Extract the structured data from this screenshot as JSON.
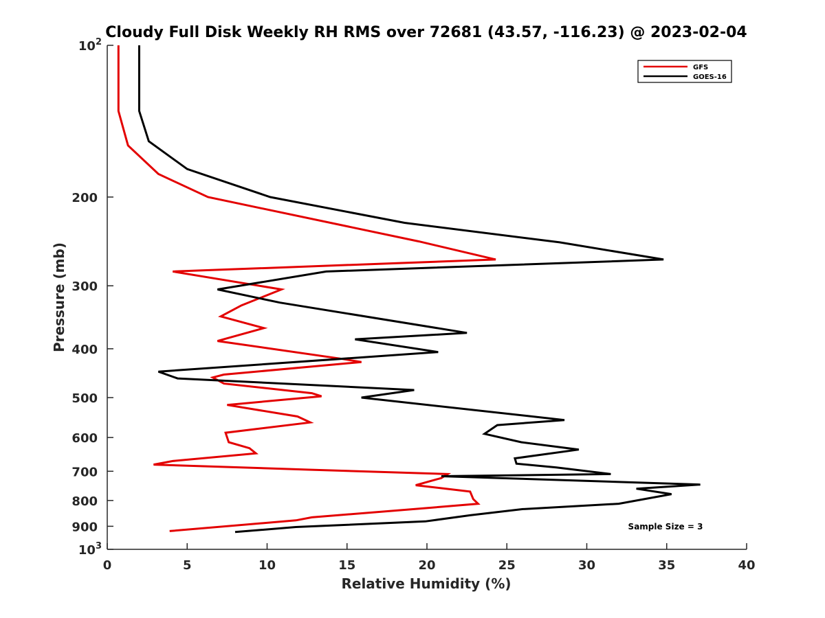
{
  "chart_data": {
    "type": "line",
    "title": "Cloudy Full Disk Weekly RH RMS over 72681 (43.57, -116.23) @ 2023-02-04",
    "xlabel": "Relative Humidity (%)",
    "ylabel": "Pressure (mb)",
    "xlim": [
      0,
      40
    ],
    "ylim": [
      100,
      1000
    ],
    "y_scale": "log",
    "y_reversed": true,
    "grid": false,
    "legend_position": "top-right",
    "x_ticks": [
      0,
      5,
      10,
      15,
      20,
      25,
      30,
      35,
      40
    ],
    "y_ticks": [
      {
        "value": 100,
        "label": "10",
        "sup": "2"
      },
      {
        "value": 200,
        "label": "200",
        "sup": ""
      },
      {
        "value": 300,
        "label": "300",
        "sup": ""
      },
      {
        "value": 400,
        "label": "400",
        "sup": ""
      },
      {
        "value": 500,
        "label": "500",
        "sup": ""
      },
      {
        "value": 600,
        "label": "600",
        "sup": ""
      },
      {
        "value": 700,
        "label": "700",
        "sup": ""
      },
      {
        "value": 800,
        "label": "800",
        "sup": ""
      },
      {
        "value": 900,
        "label": "900",
        "sup": ""
      },
      {
        "value": 1000,
        "label": "10",
        "sup": "3"
      }
    ],
    "series": [
      {
        "name": "GFS",
        "color": "#e30000",
        "points": [
          [
            0.7,
            100
          ],
          [
            0.7,
            135
          ],
          [
            1.3,
            158
          ],
          [
            3.2,
            180
          ],
          [
            6.3,
            200
          ],
          [
            19.5,
            245
          ],
          [
            24.3,
            266
          ],
          [
            4.1,
            281
          ],
          [
            10.9,
            305
          ],
          [
            8.4,
            328
          ],
          [
            7.1,
            345
          ],
          [
            9.8,
            364
          ],
          [
            6.9,
            386
          ],
          [
            14.7,
            419
          ],
          [
            15.9,
            425
          ],
          [
            7.3,
            450
          ],
          [
            6.6,
            456
          ],
          [
            7.3,
            469
          ],
          [
            12.8,
            490
          ],
          [
            13.4,
            497
          ],
          [
            7.5,
            517
          ],
          [
            11.9,
            545
          ],
          [
            12.7,
            560
          ],
          [
            7.4,
            587
          ],
          [
            7.6,
            613
          ],
          [
            8.9,
            630
          ],
          [
            9.3,
            645
          ],
          [
            4.1,
            668
          ],
          [
            2.9,
            679
          ],
          [
            12.6,
            695
          ],
          [
            21.3,
            709
          ],
          [
            20.9,
            722
          ],
          [
            19.3,
            746
          ],
          [
            22.7,
            768
          ],
          [
            22.9,
            795
          ],
          [
            23.2,
            812
          ],
          [
            19.2,
            832
          ],
          [
            12.8,
            864
          ],
          [
            11.8,
            876
          ],
          [
            3.9,
            920
          ]
        ]
      },
      {
        "name": "GOES-16",
        "color": "#000000",
        "points": [
          [
            2.0,
            100
          ],
          [
            2.0,
            135
          ],
          [
            2.6,
            155
          ],
          [
            5.0,
            176
          ],
          [
            10.2,
            200
          ],
          [
            18.6,
            225
          ],
          [
            28.3,
            246
          ],
          [
            34.8,
            266
          ],
          [
            13.7,
            281
          ],
          [
            6.9,
            305
          ],
          [
            10.8,
            324
          ],
          [
            22.5,
            372
          ],
          [
            15.5,
            383
          ],
          [
            20.7,
            406
          ],
          [
            3.2,
            444
          ],
          [
            4.4,
            458
          ],
          [
            19.2,
            483
          ],
          [
            15.9,
            500
          ],
          [
            28.6,
            554
          ],
          [
            24.4,
            567
          ],
          [
            23.6,
            590
          ],
          [
            25.9,
            613
          ],
          [
            29.5,
            634
          ],
          [
            25.5,
            660
          ],
          [
            25.6,
            676
          ],
          [
            28.1,
            688
          ],
          [
            31.5,
            709
          ],
          [
            20.9,
            716
          ],
          [
            37.1,
            744
          ],
          [
            33.1,
            758
          ],
          [
            35.3,
            777
          ],
          [
            32.0,
            812
          ],
          [
            26.0,
            832
          ],
          [
            22.7,
            856
          ],
          [
            19.9,
            880
          ],
          [
            11.8,
            903
          ],
          [
            8.0,
            924
          ]
        ]
      }
    ],
    "annotations": [
      "Sample Size = 3"
    ]
  }
}
